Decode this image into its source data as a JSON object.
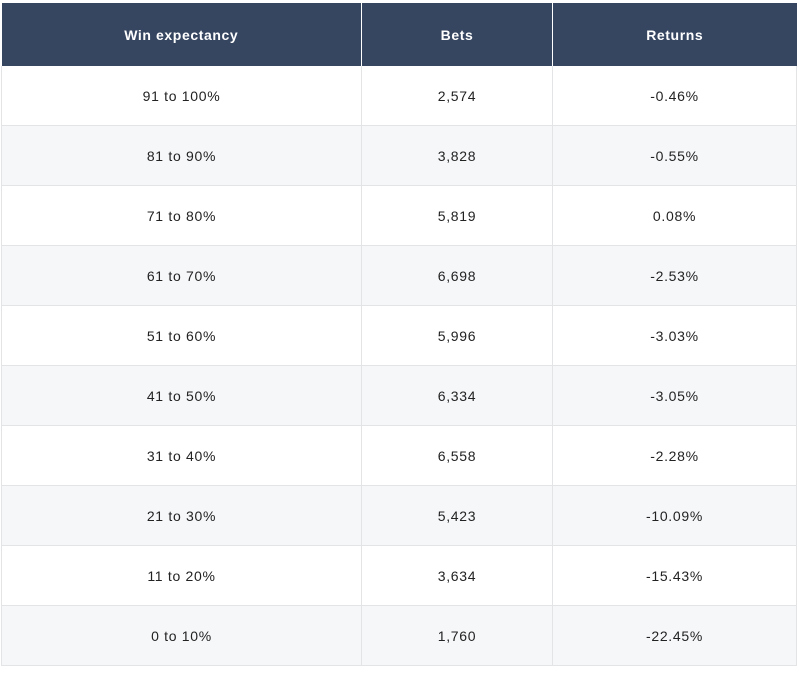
{
  "table": {
    "headers": [
      "Win expectancy",
      "Bets",
      "Returns"
    ],
    "rows": [
      [
        "91 to 100%",
        "2,574",
        "-0.46%"
      ],
      [
        "81 to 90%",
        "3,828",
        "-0.55%"
      ],
      [
        "71 to 80%",
        "5,819",
        "0.08%"
      ],
      [
        "61 to 70%",
        "6,698",
        "-2.53%"
      ],
      [
        "51 to 60%",
        "5,996",
        "-3.03%"
      ],
      [
        "41 to 50%",
        "6,334",
        "-3.05%"
      ],
      [
        "31 to 40%",
        "6,558",
        "-2.28%"
      ],
      [
        "21 to 30%",
        "5,423",
        "-10.09%"
      ],
      [
        "11 to 20%",
        "3,634",
        "-15.43%"
      ],
      [
        "0 to 10%",
        "1,760",
        "-22.45%"
      ]
    ]
  },
  "colors": {
    "header_background": "#364560",
    "header_text": "#ffffff",
    "row_alt_background": "#f6f7f9",
    "border": "#e3e4e6"
  }
}
